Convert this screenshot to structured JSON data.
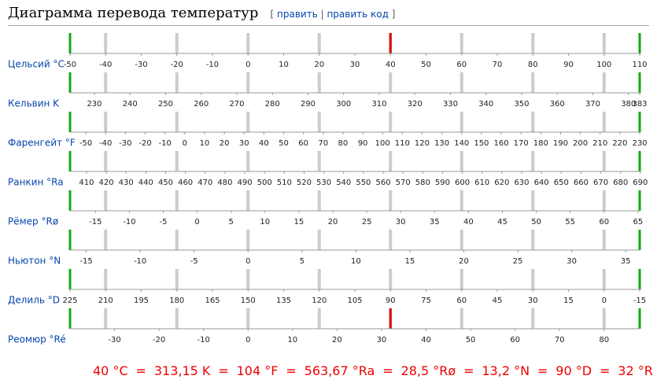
{
  "title": "Диаграмма перевода температур",
  "edit_links": [
    "править",
    "править код"
  ],
  "scales": [
    {
      "label": "Цельсий °C",
      "xlim": [
        -50,
        110
      ],
      "ticks": [
        -50,
        -40,
        -30,
        -20,
        -10,
        0,
        10,
        20,
        30,
        40,
        50,
        60,
        70,
        80,
        90,
        100,
        110
      ]
    },
    {
      "label": "Кельвин K",
      "xlim": [
        223.15,
        383.15
      ],
      "ticks": [
        230,
        240,
        250,
        260,
        270,
        280,
        290,
        300,
        310,
        320,
        330,
        340,
        350,
        360,
        370,
        380,
        {
          "value": 383.15,
          "label": "383"
        }
      ]
    },
    {
      "label": "Фаренгейт °F",
      "xlim": [
        -58,
        230
      ],
      "ticks": [
        -50,
        -40,
        -30,
        -20,
        -10,
        0,
        10,
        20,
        30,
        40,
        50,
        60,
        70,
        80,
        90,
        100,
        110,
        120,
        130,
        140,
        150,
        160,
        170,
        180,
        190,
        200,
        210,
        220,
        230
      ]
    },
    {
      "label": "Ранкин °Ra",
      "xlim": [
        401.67,
        689.67
      ],
      "ticks": [
        410,
        420,
        430,
        440,
        450,
        460,
        470,
        480,
        490,
        500,
        510,
        520,
        530,
        540,
        550,
        560,
        570,
        580,
        590,
        600,
        610,
        620,
        630,
        640,
        650,
        660,
        670,
        680,
        690
      ]
    },
    {
      "label": "Рёмер °Rø",
      "xlim": [
        -18.75,
        65.25
      ],
      "ticks": [
        -15,
        -10,
        -5,
        0,
        5,
        10,
        15,
        20,
        25,
        30,
        35,
        40,
        45,
        50,
        55,
        60,
        65
      ]
    },
    {
      "label": "Ньютон °N",
      "xlim": [
        -16.5,
        36.3
      ],
      "ticks": [
        -15,
        -10,
        -5,
        0,
        5,
        10,
        15,
        20,
        25,
        30,
        35
      ]
    },
    {
      "label": "Делиль °D",
      "xlim": [
        225,
        -15
      ],
      "ticks": [
        225,
        210,
        195,
        180,
        165,
        150,
        135,
        120,
        105,
        90,
        75,
        60,
        45,
        30,
        15,
        0,
        -15
      ]
    },
    {
      "label": "Реомюр °Ré",
      "xlim": [
        -40,
        88
      ],
      "ticks": [
        -30,
        -20,
        -10,
        0,
        10,
        20,
        30,
        40,
        50,
        60,
        70,
        80
      ]
    }
  ],
  "result": [
    "40 °C",
    "313,15 K",
    "104 °F",
    "563,67 °Ra",
    "28,5 °Rø",
    "13,2 °N",
    "90 °D",
    "32 °R"
  ],
  "separator": "="
}
